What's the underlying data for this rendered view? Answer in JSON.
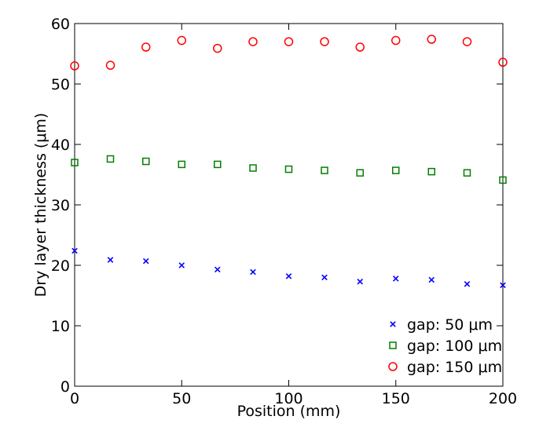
{
  "chart_data": {
    "type": "scatter",
    "title": "",
    "xlabel": "Position (mm)",
    "ylabel": "Dry layer thickness (μm)",
    "xlim": [
      0,
      200
    ],
    "ylim": [
      0,
      60
    ],
    "xticks": [
      0,
      50,
      100,
      150,
      200
    ],
    "yticks": [
      0,
      10,
      20,
      30,
      40,
      50,
      60
    ],
    "grid": false,
    "legend_position": "bottom-right",
    "series": [
      {
        "name": "gap: 50 μm",
        "marker": "x",
        "color": "#0000ff",
        "x": [
          0,
          16.7,
          33.3,
          50,
          66.7,
          83.3,
          100,
          116.7,
          133.3,
          150,
          166.7,
          183.3,
          200
        ],
        "y": [
          22.4,
          20.9,
          20.7,
          20.0,
          19.3,
          18.9,
          18.2,
          18.0,
          17.3,
          17.8,
          17.6,
          16.9,
          16.7
        ]
      },
      {
        "name": "gap: 100 μm",
        "marker": "square",
        "color": "#008000",
        "x": [
          0,
          16.7,
          33.3,
          50,
          66.7,
          83.3,
          100,
          116.7,
          133.3,
          150,
          166.7,
          183.3,
          200
        ],
        "y": [
          37.0,
          37.6,
          37.2,
          36.7,
          36.7,
          36.1,
          35.9,
          35.7,
          35.3,
          35.7,
          35.5,
          35.3,
          34.1
        ]
      },
      {
        "name": "gap: 150 μm",
        "marker": "circle",
        "color": "#ff0000",
        "x": [
          0,
          16.7,
          33.3,
          50,
          66.7,
          83.3,
          100,
          116.7,
          133.3,
          150,
          166.7,
          183.3,
          200
        ],
        "y": [
          53.0,
          53.1,
          56.1,
          57.2,
          55.9,
          57.0,
          57.0,
          57.0,
          56.1,
          57.2,
          57.4,
          57.0,
          53.6
        ]
      }
    ]
  }
}
